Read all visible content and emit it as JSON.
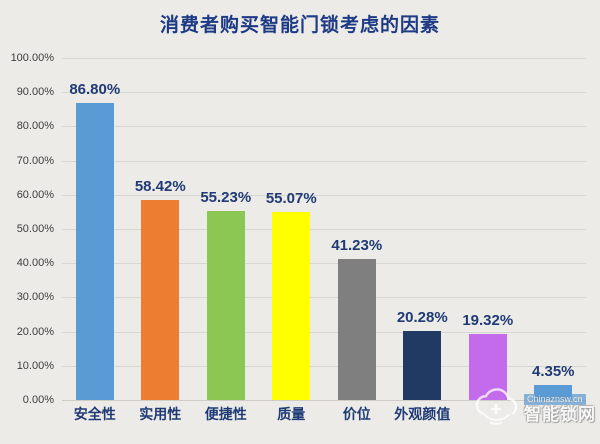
{
  "title": "消费者购买智能门锁考虑的因素",
  "colors": {
    "background": "#ecebe8",
    "title_text": "#1e3a85",
    "value_label_text": "#1f3a75",
    "category_label_text": "#1f3a75",
    "axis_tick_text": "#3d3d3d",
    "gridline": "#d8d6d2"
  },
  "watermark": {
    "logo": "cloud-lock-logo",
    "url_text": "Chinaznsw.cn",
    "site_name": "智能锁网"
  },
  "chart_data": {
    "type": "bar",
    "title": "消费者购买智能门锁考虑的因素",
    "categories": [
      "安全性",
      "实用性",
      "便捷性",
      "质量",
      "价位",
      "外观颜值",
      "",
      ""
    ],
    "values": [
      86.8,
      58.42,
      55.23,
      55.07,
      41.23,
      20.28,
      19.32,
      4.35
    ],
    "data_labels": [
      "86.80%",
      "58.42%",
      "55.23%",
      "55.07%",
      "41.23%",
      "20.28%",
      "19.32%",
      "4.35%"
    ],
    "bar_colors": [
      "#5b9bd5",
      "#ed7d31",
      "#8cc653",
      "#ffff00",
      "#7f7f7f",
      "#213a63",
      "#c36bea",
      "#5b9bd5"
    ],
    "xlabel": "",
    "ylabel": "",
    "ylim": [
      0,
      100
    ],
    "y_ticks": [
      "100.00%",
      "90.00%",
      "80.00%",
      "70.00%",
      "60.00%",
      "50.00%",
      "40.00%",
      "30.00%",
      "20.00%",
      "10.00%",
      "0.00%"
    ],
    "grid": true,
    "legend": false,
    "note": "labels of last two categories hidden behind watermark"
  }
}
